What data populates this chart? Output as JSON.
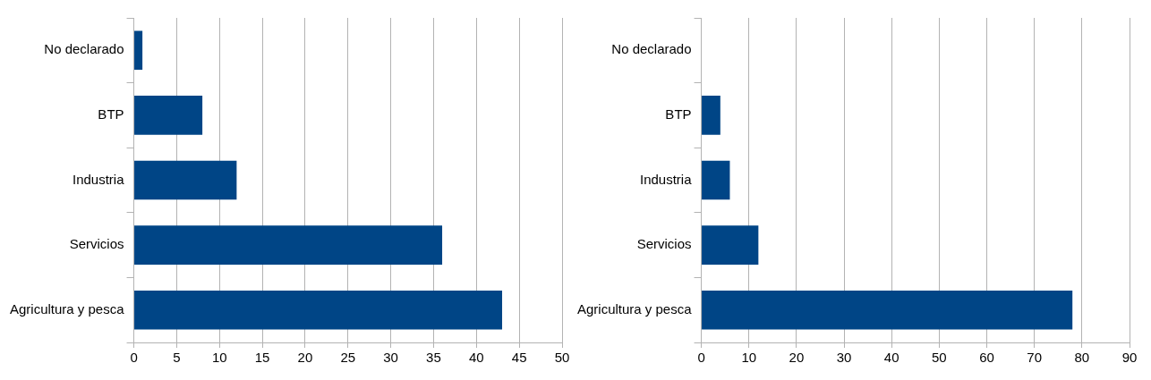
{
  "chart_data": [
    {
      "type": "bar",
      "orientation": "horizontal",
      "categories": [
        "No declarado",
        "BTP",
        "Industria",
        "Servicios",
        "Agricultura y pesca"
      ],
      "values": [
        1,
        8,
        12,
        36,
        43
      ],
      "color": "#004586",
      "xlim": [
        0,
        50
      ],
      "xticks": [
        0,
        5,
        10,
        15,
        20,
        25,
        30,
        35,
        40,
        45,
        50
      ],
      "grid": "x",
      "legend": false
    },
    {
      "type": "bar",
      "orientation": "horizontal",
      "categories": [
        "No declarado",
        "BTP",
        "Industria",
        "Servicios",
        "Agricultura y pesca"
      ],
      "values": [
        0,
        4,
        6,
        12,
        78
      ],
      "color": "#004586",
      "xlim": [
        0,
        90
      ],
      "xticks": [
        0,
        10,
        20,
        30,
        40,
        50,
        60,
        70,
        80,
        90
      ],
      "grid": "x",
      "legend": false
    }
  ]
}
